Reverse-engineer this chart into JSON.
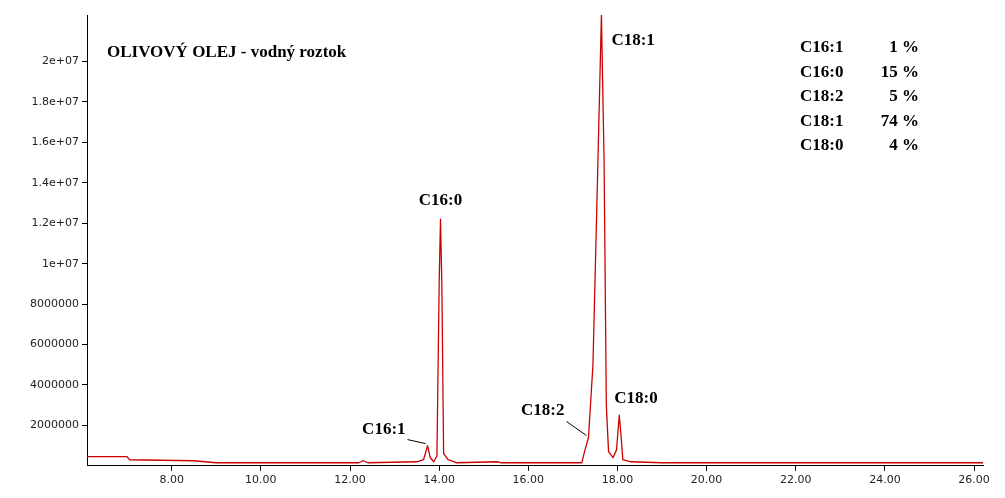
{
  "chart_data": {
    "type": "line",
    "title": "OLIVOVÝ OLEJ - vodný roztok",
    "series": [
      {
        "color": "#cc0000",
        "x": [
          6.1,
          7.0,
          7.05,
          8.5,
          9.0,
          12.2,
          12.3,
          12.4,
          13.5,
          13.65,
          13.74,
          13.8,
          13.88,
          13.95,
          14.0,
          14.03,
          14.06,
          14.1,
          14.2,
          14.4,
          15.3,
          15.4,
          17.2,
          17.25,
          17.35,
          17.45,
          17.55,
          17.64,
          17.7,
          17.75,
          17.8,
          17.9,
          17.98,
          18.04,
          18.08,
          18.12,
          18.3,
          19.0,
          26.2
        ],
        "values": [
          450000,
          450000,
          300000,
          250000,
          150000,
          150000,
          250000,
          150000,
          200000,
          300000,
          1000000,
          400000,
          200000,
          500000,
          9000000,
          12200000,
          9000000,
          600000,
          300000,
          150000,
          200000,
          150000,
          150000,
          600000,
          1400000,
          5000000,
          14000000,
          22300000,
          15000000,
          3000000,
          700000,
          400000,
          800000,
          2500000,
          1500000,
          300000,
          200000,
          150000,
          150000
        ]
      }
    ],
    "xlim": [
      6.1,
      26.2
    ],
    "xticks": [
      {
        "value": 8,
        "label": "8.00"
      },
      {
        "value": 10,
        "label": "10.00"
      },
      {
        "value": 12,
        "label": "12.00"
      },
      {
        "value": 14,
        "label": "14.00"
      },
      {
        "value": 16,
        "label": "16.00"
      },
      {
        "value": 18,
        "label": "18.00"
      },
      {
        "value": 20,
        "label": "20.00"
      },
      {
        "value": 22,
        "label": "22.00"
      },
      {
        "value": 24,
        "label": "24.00"
      },
      {
        "value": 26,
        "label": "26.00"
      }
    ],
    "ylim": [
      0,
      22300000
    ],
    "yticks": [
      2000000,
      4000000,
      6000000,
      8000000,
      {
        "value": 10000000,
        "label": "1e+07"
      },
      {
        "value": 12000000,
        "label": "1.2e+07"
      },
      {
        "value": 14000000,
        "label": "1.4e+07"
      },
      {
        "value": 16000000,
        "label": "1.6e+07"
      },
      {
        "value": 18000000,
        "label": "1.8e+07"
      },
      {
        "value": 20000000,
        "label": "2e+07"
      }
    ],
    "grid": false,
    "legend": false,
    "marker": "none",
    "line_style": "solid",
    "annotations": [
      {
        "text": "C16:0",
        "x": 14.03,
        "y": 12200000
      },
      {
        "text": "C16:1",
        "x": 13.74,
        "y": 1000000
      },
      {
        "text": "C18:2",
        "x": 17.35,
        "y": 1400000
      },
      {
        "text": "C18:1",
        "x": 17.64,
        "y": 22300000
      },
      {
        "text": "C18:0",
        "x": 18.04,
        "y": 2500000
      },
      "C16:1   1 %",
      "C16:0  15 %",
      "C18:2   5 %",
      "C18:1  74 %",
      "C18:0   4 %"
    ]
  }
}
